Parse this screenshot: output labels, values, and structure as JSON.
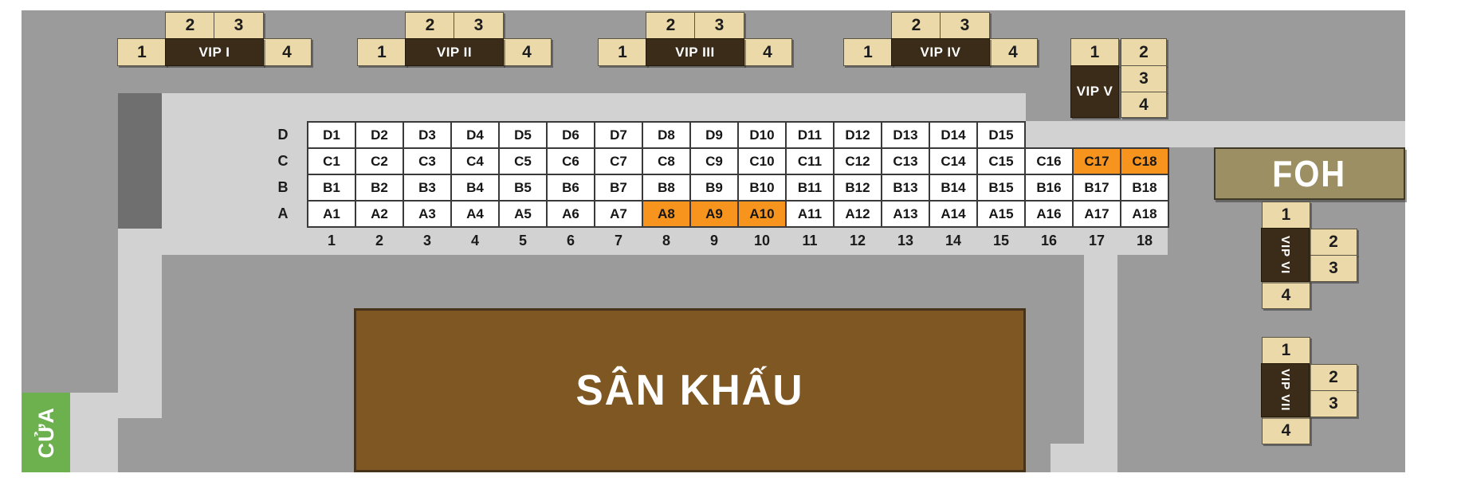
{
  "door": {
    "label": "CỬA"
  },
  "stage": {
    "label": "SÂN KHẤU"
  },
  "foh": {
    "label": "FOH"
  },
  "vip_tables": [
    {
      "id": "vip-1",
      "label": "VIP I",
      "seats": [
        "1",
        "2",
        "3",
        "4"
      ]
    },
    {
      "id": "vip-2",
      "label": "VIP II",
      "seats": [
        "1",
        "2",
        "3",
        "4"
      ]
    },
    {
      "id": "vip-3",
      "label": "VIP III",
      "seats": [
        "1",
        "2",
        "3",
        "4"
      ]
    },
    {
      "id": "vip-4",
      "label": "VIP IV",
      "seats": [
        "1",
        "2",
        "3",
        "4"
      ]
    },
    {
      "id": "vip-5",
      "label": "VIP V",
      "seats": [
        "1",
        "2",
        "3",
        "4"
      ]
    },
    {
      "id": "vip-6",
      "label": "VIP VI",
      "seats": [
        "1",
        "2",
        "3",
        "4"
      ]
    },
    {
      "id": "vip-7",
      "label": "VIP VII",
      "seats": [
        "1",
        "2",
        "3",
        "4"
      ]
    }
  ],
  "seating_grid": {
    "row_labels": [
      "D",
      "C",
      "B",
      "A"
    ],
    "column_labels": [
      "1",
      "2",
      "3",
      "4",
      "5",
      "6",
      "7",
      "8",
      "9",
      "10",
      "11",
      "12",
      "13",
      "14",
      "15",
      "16",
      "17",
      "18"
    ],
    "rows": [
      {
        "label": "D",
        "seats": [
          "D1",
          "D2",
          "D3",
          "D4",
          "D5",
          "D6",
          "D7",
          "D8",
          "D9",
          "D10",
          "D11",
          "D12",
          "D13",
          "D14",
          "D15"
        ]
      },
      {
        "label": "C",
        "seats": [
          "C1",
          "C2",
          "C3",
          "C4",
          "C5",
          "C6",
          "C7",
          "C8",
          "C9",
          "C10",
          "C11",
          "C12",
          "C13",
          "C14",
          "C15",
          "C16",
          "C17",
          "C18"
        ]
      },
      {
        "label": "B",
        "seats": [
          "B1",
          "B2",
          "B3",
          "B4",
          "B5",
          "B6",
          "B7",
          "B8",
          "B9",
          "B10",
          "B11",
          "B12",
          "B13",
          "B14",
          "B15",
          "B16",
          "B17",
          "B18"
        ]
      },
      {
        "label": "A",
        "seats": [
          "A1",
          "A2",
          "A3",
          "A4",
          "A5",
          "A6",
          "A7",
          "A8",
          "A9",
          "A10",
          "A11",
          "A12",
          "A13",
          "A14",
          "A15",
          "A16",
          "A17",
          "A18"
        ]
      }
    ],
    "highlighted_seats": [
      "C17",
      "C18",
      "A8",
      "A9",
      "A10"
    ]
  },
  "colors": {
    "highlight": "#f7941e",
    "seat_tan": "#ecd9a9",
    "vip_brown": "#3b2b19",
    "stage_brown": "#7f5722",
    "foh_khaki": "#9c8f63",
    "door_green": "#6cb14d",
    "floor_gray": "#9b9b9b",
    "corridor_gray": "#d2d2d2",
    "block_dark_gray": "#6f6f6f"
  }
}
